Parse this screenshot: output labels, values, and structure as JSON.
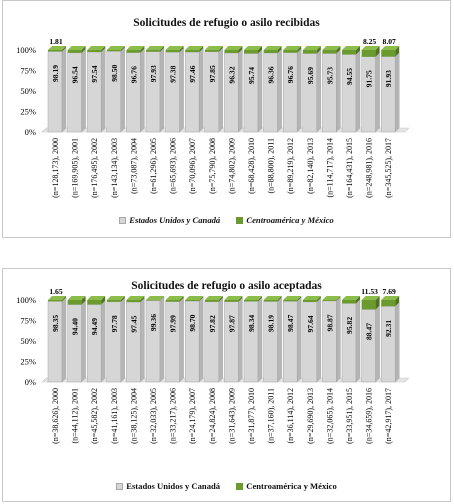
{
  "charts": [
    {
      "id": "recibidas",
      "legend": {
        "us_label": "Estados Unidos y Canadá",
        "ca_label": "Centroamérica y México"
      },
      "colors": {
        "us": "#d6d6d6",
        "ca": "#6b9a2e"
      }
    },
    {
      "id": "aceptadas",
      "legend": {
        "us_label": "Estados Unidos y Canadá",
        "ca_label": "Centroamérica  y México"
      },
      "colors": {
        "us": "#d6d6d6",
        "ca": "#6b9a2e"
      }
    }
  ],
  "chart_data": [
    {
      "type": "bar",
      "stacked": "percent",
      "title": "Solicitudes de refugio o asilo recibidas",
      "categories": [
        "(n=128,173), 2000",
        "(n=169,905), 2001",
        "(n=176,495), 2002",
        "(n=143,134), 2003",
        "(n=73,087), 2004",
        "(n=61,296), 2005",
        "(n=65,693), 2006",
        "(n=70,096), 2007",
        "(n=75,790), 2008",
        "(n=74,802), 2009",
        "(n=68,428), 2010",
        "(n=88,800), 2011",
        "(n=89,219), 2012",
        "(n=82,140), 2013",
        "(n=114,717), 2014",
        "(n=164,431), 2015",
        "(n=248,981), 2016",
        "(n=345,525), 2017"
      ],
      "series": [
        {
          "name": "Estados Unidos y Canadá",
          "values": [
            98.19,
            96.54,
            97.54,
            98.5,
            96.76,
            97.93,
            97.38,
            97.46,
            97.85,
            96.32,
            95.74,
            96.36,
            96.76,
            95.69,
            95.73,
            94.55,
            91.75,
            91.93
          ],
          "labels": [
            "98.19",
            "96.54",
            "97.54",
            "98.50",
            "96.76",
            "97.93",
            "97.38",
            "97.46",
            "97.85",
            "96.32",
            "95.74",
            "96.36",
            "96.76",
            "95.69",
            "95.73",
            "94.55",
            "91.75",
            "91.93"
          ]
        },
        {
          "name": "Centroamérica y México",
          "values": [
            1.81,
            3.46,
            2.46,
            1.5,
            3.24,
            2.07,
            2.62,
            2.54,
            2.15,
            3.68,
            4.26,
            3.64,
            3.24,
            4.31,
            4.27,
            5.45,
            8.25,
            8.07
          ],
          "labels": [
            "1.81",
            "",
            "",
            "",
            "",
            "",
            "",
            "",
            "",
            "",
            "",
            "",
            "",
            "",
            "",
            "",
            "8.25",
            "8.07"
          ]
        }
      ],
      "yticks": [
        "0%",
        "25%",
        "50%",
        "75%",
        "100%"
      ],
      "ylim": [
        0,
        100
      ],
      "legend_position": "bottom"
    },
    {
      "type": "bar",
      "stacked": "percent",
      "title": "Solicitudes de refugio o asilo aceptadas",
      "categories": [
        "(n=38,626), 2000",
        "(n=44,112), 2001",
        "(n=45,582), 2002",
        "(n=41,161), 2003",
        "(n=38,125), 2004",
        "(n=32,033), 2005",
        "(n=33,217), 2006",
        "(n=24,179), 2007",
        "(n=24,824), 2008",
        "(n=31,643), 2009",
        "(n=31,877), 2010",
        "(n=37,160), 2011",
        "(n=36,114), 2012",
        "(n=29,690), 2013",
        "(n=32,065), 2014",
        "(n=33,951), 2015",
        "(n=34,659), 2016",
        "(n=42,917), 2017"
      ],
      "series": [
        {
          "name": "Estados Unidos y Canadá",
          "values": [
            98.35,
            94.4,
            94.49,
            97.78,
            97.45,
            99.36,
            97.99,
            98.7,
            97.82,
            97.87,
            98.34,
            98.19,
            98.47,
            97.64,
            98.87,
            95.82,
            88.47,
            92.31
          ],
          "labels": [
            "98.35",
            "94.40",
            "94.49",
            "97.78",
            "97.45",
            "99.36",
            "97.99",
            "98.70",
            "97.82",
            "97.87",
            "98.34",
            "98.19",
            "98.47",
            "97.64",
            "98.87",
            "95.82",
            "88.47",
            "92.31"
          ]
        },
        {
          "name": "Centroamérica y México",
          "values": [
            1.65,
            5.6,
            5.51,
            2.22,
            2.55,
            0.64,
            2.01,
            1.3,
            2.18,
            2.13,
            1.66,
            1.81,
            1.53,
            2.36,
            1.13,
            4.18,
            11.53,
            7.69
          ],
          "labels": [
            "1.65",
            "",
            "",
            "",
            "",
            "",
            "",
            "",
            "",
            "",
            "",
            "",
            "",
            "",
            "",
            "",
            "11.53",
            "7.69"
          ]
        }
      ],
      "yticks": [
        "0%",
        "25%",
        "50%",
        "75%",
        "100%"
      ],
      "ylim": [
        0,
        100
      ],
      "legend_position": "bottom"
    }
  ]
}
